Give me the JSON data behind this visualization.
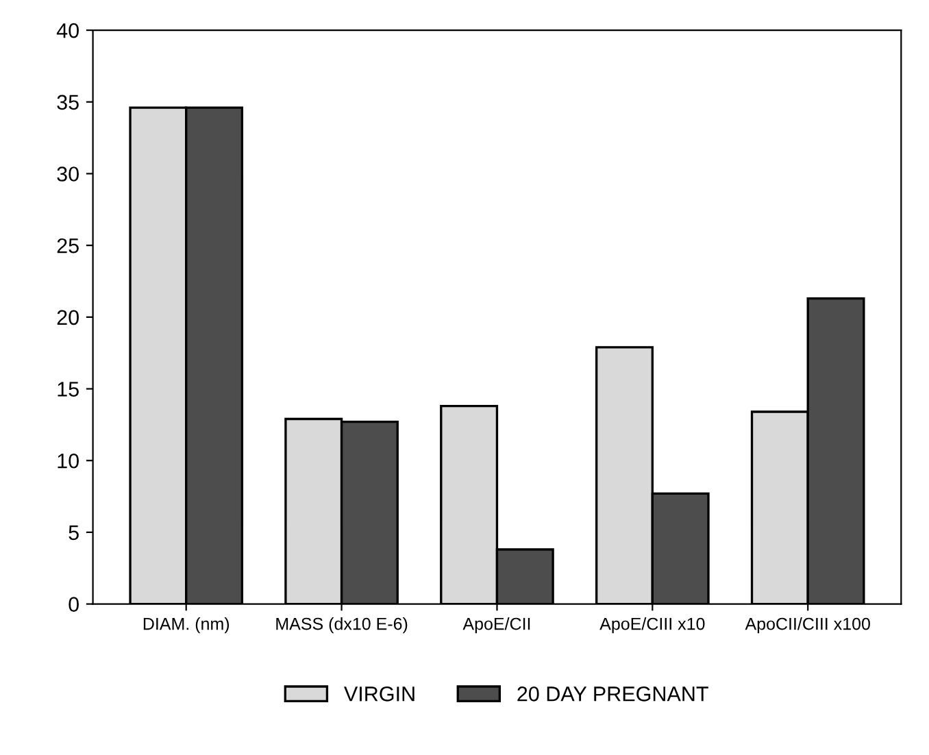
{
  "chart_data": {
    "type": "bar",
    "categories": [
      "DIAM. (nm)",
      "MASS (dx10 E-6)",
      "ApoE/CII",
      "ApoE/CIII x10",
      "ApoCII/CIII x100"
    ],
    "series": [
      {
        "name": "VIRGIN",
        "color": "#d9d9d9",
        "values": [
          34.6,
          12.9,
          13.8,
          17.9,
          13.4
        ]
      },
      {
        "name": "20 DAY PREGNANT",
        "color": "#4d4d4d",
        "values": [
          34.6,
          12.7,
          3.8,
          7.7,
          21.3
        ]
      }
    ],
    "ylim": [
      0,
      40
    ],
    "yticks": [
      0,
      5,
      10,
      15,
      20,
      25,
      30,
      35,
      40
    ],
    "grid": false,
    "legend": "bottom"
  }
}
